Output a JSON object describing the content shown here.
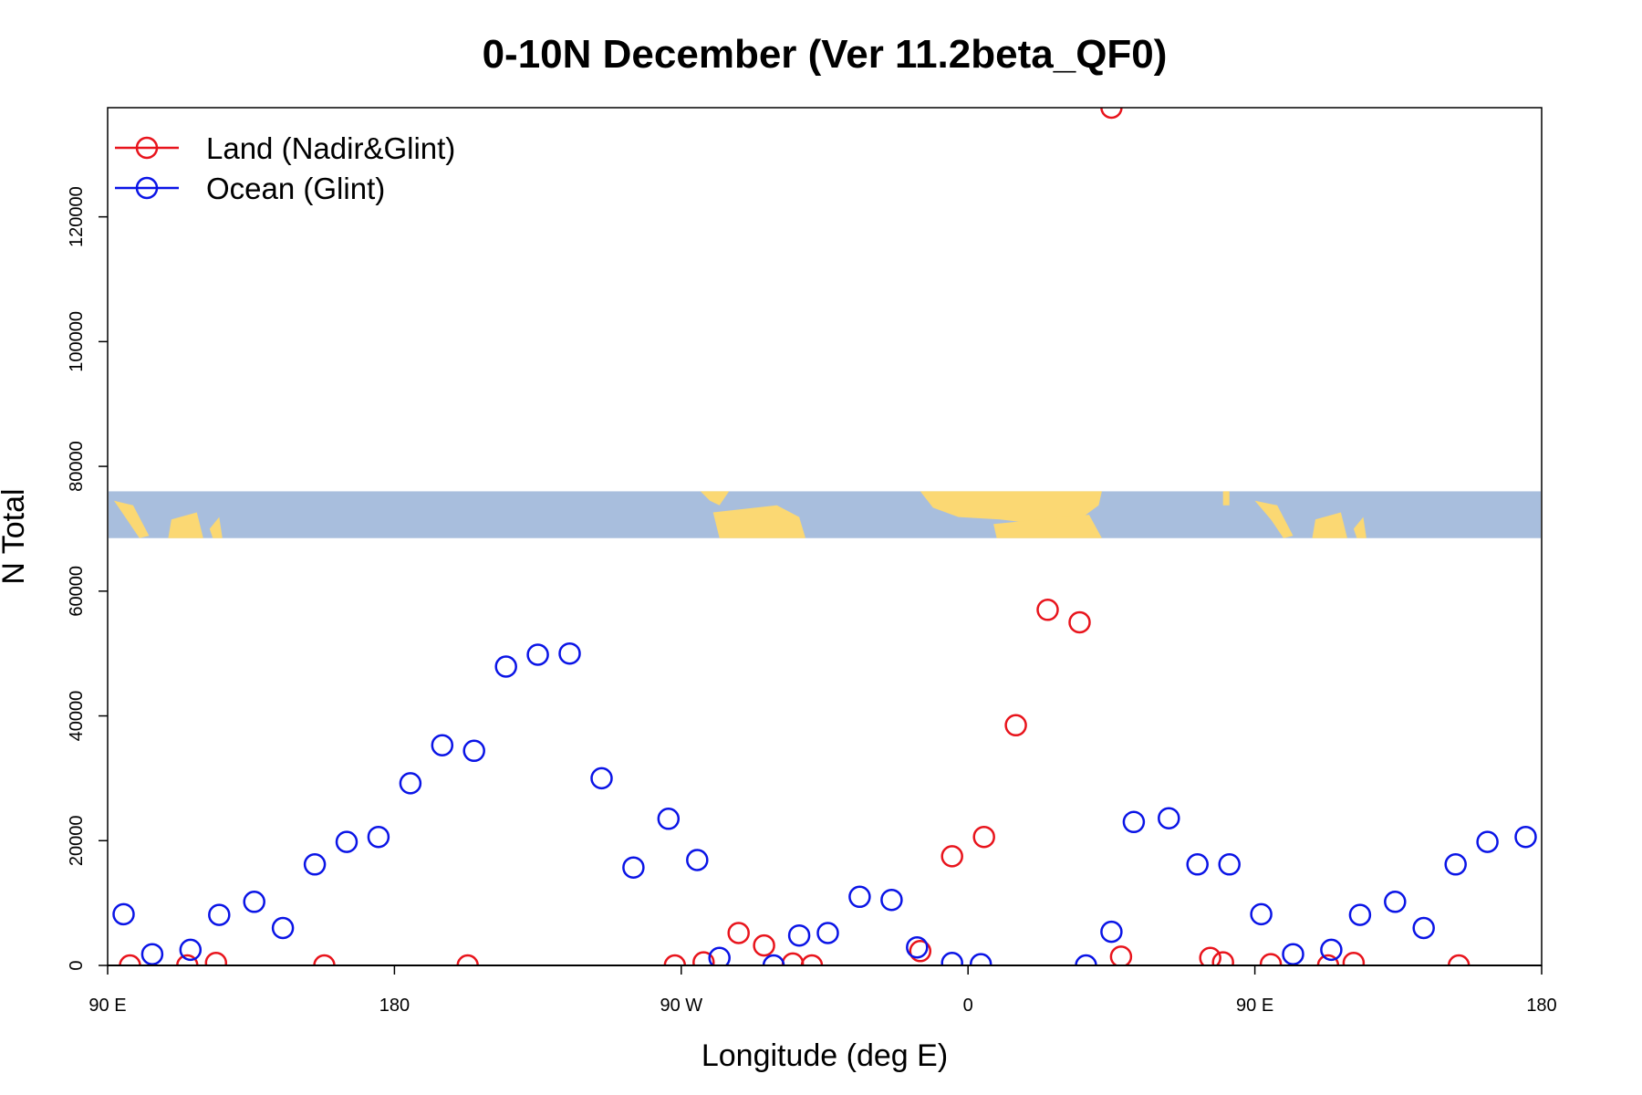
{
  "chart_data": {
    "type": "scatter",
    "title": "0-10N December (Ver 11.2beta_QF0)",
    "xlabel": "Longitude (deg E)",
    "ylabel": "N Total",
    "xlim": [
      90,
      540
    ],
    "ylim": [
      0,
      137500
    ],
    "x_ticks": [
      {
        "value": 90,
        "label": "90 E"
      },
      {
        "value": 180,
        "label": "180"
      },
      {
        "value": 270,
        "label": "90 W"
      },
      {
        "value": 360,
        "label": "0"
      },
      {
        "value": 450,
        "label": "90 E"
      },
      {
        "value": 540,
        "label": "180"
      }
    ],
    "y_ticks": [
      {
        "value": 0,
        "label": "0"
      },
      {
        "value": 20000,
        "label": "20000"
      },
      {
        "value": 40000,
        "label": "40000"
      },
      {
        "value": 60000,
        "label": "60000"
      },
      {
        "value": 80000,
        "label": "80000"
      },
      {
        "value": 100000,
        "label": "100000"
      },
      {
        "value": 120000,
        "label": "120000"
      }
    ],
    "legend_position": "top-left",
    "map_strip": {
      "y_min": 68500,
      "y_max": 76000,
      "ocean_color": "#a8bedd",
      "land_color": "#fbd873"
    },
    "series": [
      {
        "name": "Land (Nadir&Glint)",
        "color": "#e8141c",
        "points": [
          {
            "x": 97,
            "y": 0
          },
          {
            "x": 115,
            "y": 0
          },
          {
            "x": 124,
            "y": 400
          },
          {
            "x": 158,
            "y": 0
          },
          {
            "x": 203,
            "y": 0
          },
          {
            "x": 268,
            "y": 0
          },
          {
            "x": 277,
            "y": 500
          },
          {
            "x": 288,
            "y": 5200
          },
          {
            "x": 296,
            "y": 3200
          },
          {
            "x": 305,
            "y": 300
          },
          {
            "x": 311,
            "y": 0
          },
          {
            "x": 345,
            "y": 2300
          },
          {
            "x": 355,
            "y": 17500
          },
          {
            "x": 365,
            "y": 20600
          },
          {
            "x": 375,
            "y": 38500
          },
          {
            "x": 385,
            "y": 57000
          },
          {
            "x": 395,
            "y": 55000
          },
          {
            "x": 405,
            "y": 137500
          },
          {
            "x": 408,
            "y": 1400
          },
          {
            "x": 436,
            "y": 1200
          },
          {
            "x": 440,
            "y": 500
          },
          {
            "x": 455,
            "y": 200
          },
          {
            "x": 473,
            "y": 0
          },
          {
            "x": 481,
            "y": 400
          },
          {
            "x": 514,
            "y": 0
          }
        ]
      },
      {
        "name": "Ocean (Glint)",
        "color": "#0a14e6",
        "points": [
          {
            "x": 95,
            "y": 8200
          },
          {
            "x": 104,
            "y": 1800
          },
          {
            "x": 116,
            "y": 2500
          },
          {
            "x": 125,
            "y": 8100
          },
          {
            "x": 136,
            "y": 10200
          },
          {
            "x": 145,
            "y": 6000
          },
          {
            "x": 155,
            "y": 16200
          },
          {
            "x": 165,
            "y": 19800
          },
          {
            "x": 175,
            "y": 20600
          },
          {
            "x": 185,
            "y": 29200
          },
          {
            "x": 195,
            "y": 35300
          },
          {
            "x": 205,
            "y": 34400
          },
          {
            "x": 215,
            "y": 47900
          },
          {
            "x": 225,
            "y": 49800
          },
          {
            "x": 235,
            "y": 50000
          },
          {
            "x": 245,
            "y": 30000
          },
          {
            "x": 255,
            "y": 15700
          },
          {
            "x": 266,
            "y": 23500
          },
          {
            "x": 275,
            "y": 16900
          },
          {
            "x": 282,
            "y": 1200
          },
          {
            "x": 299,
            "y": 0
          },
          {
            "x": 307,
            "y": 4800
          },
          {
            "x": 316,
            "y": 5200
          },
          {
            "x": 326,
            "y": 11000
          },
          {
            "x": 336,
            "y": 10500
          },
          {
            "x": 344,
            "y": 2900
          },
          {
            "x": 355,
            "y": 400
          },
          {
            "x": 364,
            "y": 200
          },
          {
            "x": 397,
            "y": 0
          },
          {
            "x": 405,
            "y": 5400
          },
          {
            "x": 412,
            "y": 23000
          },
          {
            "x": 423,
            "y": 23600
          },
          {
            "x": 432,
            "y": 16200
          },
          {
            "x": 442,
            "y": 16200
          },
          {
            "x": 452,
            "y": 8200
          },
          {
            "x": 462,
            "y": 1800
          },
          {
            "x": 474,
            "y": 2500
          },
          {
            "x": 483,
            "y": 8100
          },
          {
            "x": 494,
            "y": 10200
          },
          {
            "x": 503,
            "y": 6000
          },
          {
            "x": 513,
            "y": 16200
          },
          {
            "x": 523,
            "y": 19800
          },
          {
            "x": 535,
            "y": 20600
          }
        ]
      }
    ]
  }
}
